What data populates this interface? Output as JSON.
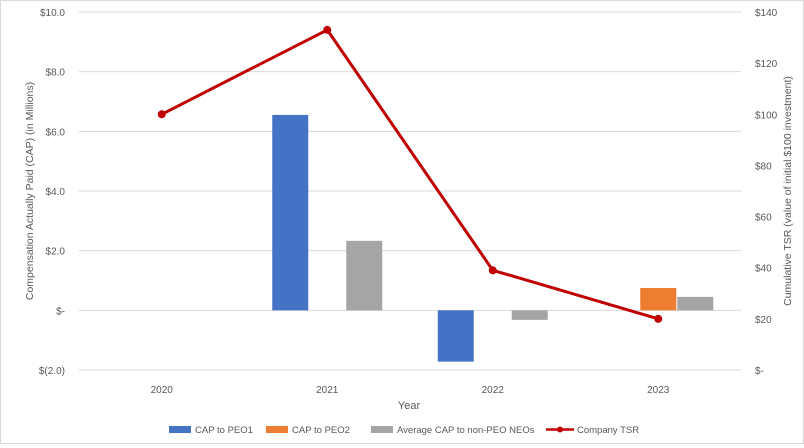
{
  "chart_data": {
    "type": "bar",
    "categories": [
      "2020",
      "2021",
      "2022",
      "2023"
    ],
    "xlabel": "Year",
    "ylabel_left": "Compensation Actually Paid (CAP) (in Millions)",
    "ylabel_right": "Cumulative TSR (value of initial $100 investment)",
    "ylim_left": [
      -2,
      10
    ],
    "ylim_right": [
      0,
      140
    ],
    "left_ticks": [
      {
        "value": 10,
        "label": "$10.0"
      },
      {
        "value": 8,
        "label": "$8.0"
      },
      {
        "value": 6,
        "label": "$6.0"
      },
      {
        "value": 4,
        "label": "$4.0"
      },
      {
        "value": 2,
        "label": "$2.0"
      },
      {
        "value": 0,
        "label": "$-"
      },
      {
        "value": -2,
        "label": "$(2.0)"
      }
    ],
    "right_ticks": [
      {
        "value": 140,
        "label": "$140"
      },
      {
        "value": 120,
        "label": "$120"
      },
      {
        "value": 100,
        "label": "$100"
      },
      {
        "value": 80,
        "label": "$80"
      },
      {
        "value": 60,
        "label": "$60"
      },
      {
        "value": 40,
        "label": "$40"
      },
      {
        "value": 20,
        "label": "$20"
      },
      {
        "value": 0,
        "label": "$-"
      }
    ],
    "bar_series": [
      {
        "name": "CAP to PEO1",
        "color": "#4472c4",
        "values": [
          null,
          6.55,
          -1.72,
          null
        ]
      },
      {
        "name": "CAP to PEO2",
        "color": "#ed7d31",
        "values": [
          null,
          null,
          null,
          0.75
        ]
      },
      {
        "name": "Average CAP to non-PEO NEOs",
        "color": "#a5a5a5",
        "values": [
          null,
          2.33,
          -0.32,
          0.45
        ]
      }
    ],
    "line_series": {
      "name": "Company TSR",
      "color": "#c00000",
      "axis": "right",
      "values": [
        100,
        133,
        39,
        20
      ]
    },
    "grid": true,
    "legend_position": "bottom"
  }
}
